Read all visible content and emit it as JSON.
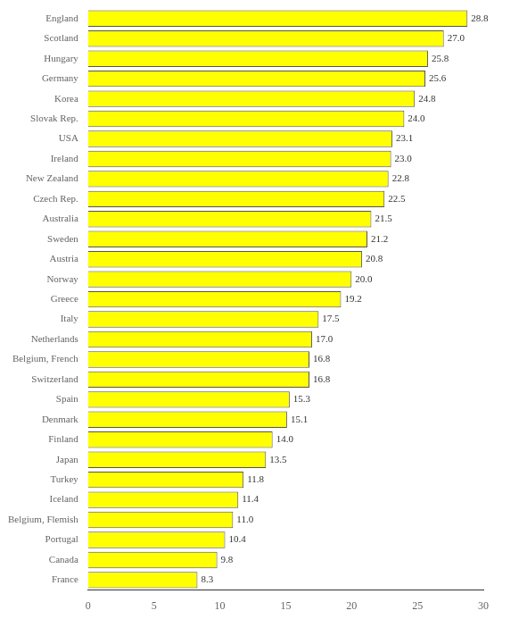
{
  "chart_data": {
    "type": "bar",
    "orientation": "horizontal",
    "categories": [
      "France",
      "Canada",
      "Portugal",
      "Belgium, Flemish",
      "Iceland",
      "Turkey",
      "Japan",
      "Finland",
      "Denmark",
      "Spain",
      "Switzerland",
      "Belgium, French",
      "Netherlands",
      "Italy",
      "Greece",
      "Norway",
      "Austria",
      "Sweden",
      "Australia",
      "Czech Rep.",
      "New Zealand",
      "Ireland",
      "USA",
      "Slovak Rep.",
      "Korea",
      "Germany",
      "Hungary",
      "Scotland",
      "England"
    ],
    "values": [
      8.3,
      9.8,
      10.4,
      11.0,
      11.4,
      11.8,
      13.5,
      14.0,
      15.1,
      15.3,
      16.8,
      16.8,
      17.0,
      17.5,
      19.2,
      20.0,
      20.8,
      21.2,
      21.5,
      22.5,
      22.8,
      23.0,
      23.1,
      24.0,
      24.8,
      25.6,
      25.8,
      27.0,
      28.8
    ],
    "value_labels": [
      "8.3",
      "9.8",
      "10.4",
      "11.0",
      "11.4",
      "11.8",
      "13.5",
      "14.0",
      "15.1",
      "15.3",
      "16.8",
      "16.8",
      "17.0",
      "17.5",
      "19.2",
      "20.0",
      "20.8",
      "21.2",
      "21.5",
      "22.5",
      "22.8",
      "23.0",
      "23.1",
      "24.0",
      "24.8",
      "25.6",
      "25.8",
      "27.0",
      "28.8"
    ],
    "data_labels": true,
    "color": "#FFFF00",
    "xlim": [
      0,
      30
    ],
    "xticks": [
      0,
      5,
      10,
      15,
      20,
      25,
      30
    ],
    "grid": false
  }
}
